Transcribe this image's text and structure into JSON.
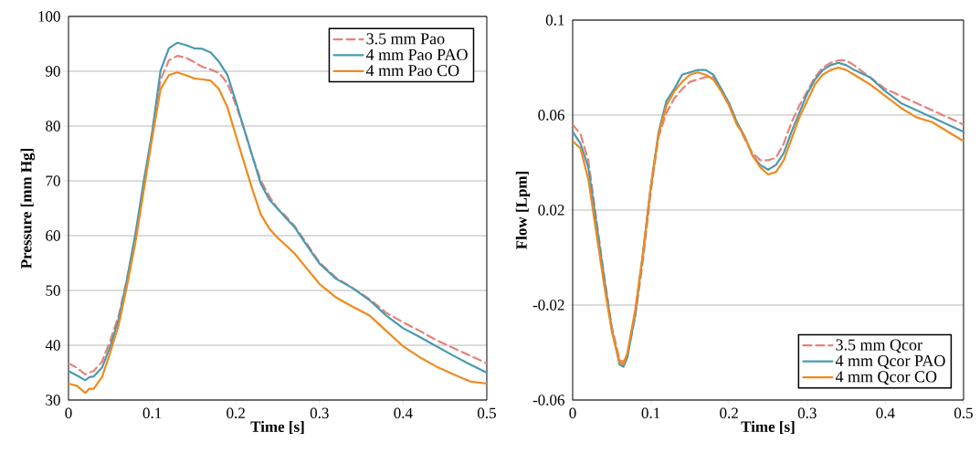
{
  "chart_data": [
    {
      "type": "line",
      "xlabel": "Time [s]",
      "ylabel": "Pressure [mm Hg]",
      "xlim": [
        0,
        0.5
      ],
      "ylim": [
        30,
        100
      ],
      "xticks": [
        0,
        0.1,
        0.2,
        0.3,
        0.4,
        0.5
      ],
      "yticks": [
        30,
        40,
        50,
        60,
        70,
        80,
        90,
        100
      ],
      "grid": "y",
      "legend": "top right",
      "marker": "none",
      "x": [
        0,
        0.01,
        0.02,
        0.025,
        0.03,
        0.04,
        0.05,
        0.06,
        0.07,
        0.08,
        0.09,
        0.1,
        0.11,
        0.12,
        0.13,
        0.14,
        0.15,
        0.16,
        0.17,
        0.18,
        0.19,
        0.2,
        0.21,
        0.22,
        0.23,
        0.24,
        0.25,
        0.26,
        0.27,
        0.28,
        0.3,
        0.32,
        0.34,
        0.36,
        0.38,
        0.4,
        0.42,
        0.44,
        0.46,
        0.48,
        0.5
      ],
      "series": [
        {
          "name": "3.5 mm Pao",
          "color": "#e8827a",
          "line_style": "dashed",
          "values": [
            36.7,
            35.9,
            34.7,
            35.0,
            35.3,
            37,
            40.9,
            45.4,
            52.1,
            59.9,
            68.8,
            78.9,
            88.4,
            92,
            92.8,
            92.5,
            91.7,
            90.8,
            90.3,
            89.7,
            87.8,
            83.9,
            79.4,
            74.4,
            70,
            67.2,
            64.9,
            63.5,
            61.8,
            59.6,
            55.1,
            52.3,
            50.4,
            48.4,
            45.9,
            44.2,
            42.6,
            40.9,
            39.5,
            38.1,
            36.7
          ]
        },
        {
          "name": "4 mm Pao PAO",
          "color": "#4a9ab0",
          "line_style": "solid",
          "values": [
            35.3,
            34.5,
            33.6,
            34.2,
            34.3,
            35.9,
            39.8,
            44.8,
            52.1,
            60.4,
            70,
            78.9,
            90.1,
            94.2,
            95.2,
            94.8,
            94.2,
            94.1,
            93.4,
            91.7,
            89.3,
            84.5,
            79.4,
            74.4,
            69.4,
            66.6,
            64.9,
            63.2,
            61.6,
            59.3,
            54.9,
            52.1,
            50.4,
            48.2,
            45.4,
            43.1,
            41.5,
            39.8,
            38.1,
            36.5,
            35
          ]
        },
        {
          "name": "4 mm Pao CO",
          "color": "#f08a1c",
          "line_style": "solid",
          "values": [
            33,
            32.6,
            31.3,
            32.1,
            32,
            34.2,
            38.7,
            43.7,
            50.9,
            58.8,
            68.3,
            77.8,
            86.7,
            89.3,
            89.8,
            89.3,
            88.7,
            88.5,
            88.3,
            86.7,
            83.4,
            78.3,
            73.3,
            68.3,
            63.8,
            61.3,
            59.6,
            58.2,
            56.8,
            54.9,
            51.2,
            48.7,
            47,
            45.4,
            42.6,
            39.8,
            37.8,
            36.1,
            34.7,
            33.4,
            33
          ]
        }
      ]
    },
    {
      "type": "line",
      "xlabel": "Time [s]",
      "ylabel": "Flow [Lpm]",
      "xlim": [
        0,
        0.5
      ],
      "ylim": [
        -0.06,
        0.1
      ],
      "xticks": [
        0,
        0.1,
        0.2,
        0.3,
        0.4,
        0.5
      ],
      "yticks": [
        -0.06,
        -0.02,
        0.02,
        0.06,
        0.1
      ],
      "grid": "y",
      "legend": "bottom right",
      "marker": "none",
      "x": [
        0,
        0.01,
        0.02,
        0.03,
        0.04,
        0.05,
        0.06,
        0.065,
        0.07,
        0.08,
        0.09,
        0.1,
        0.11,
        0.12,
        0.13,
        0.14,
        0.15,
        0.16,
        0.17,
        0.18,
        0.19,
        0.2,
        0.21,
        0.22,
        0.23,
        0.24,
        0.25,
        0.26,
        0.27,
        0.28,
        0.29,
        0.3,
        0.31,
        0.32,
        0.33,
        0.34,
        0.35,
        0.36,
        0.38,
        0.4,
        0.42,
        0.44,
        0.46,
        0.48,
        0.5
      ],
      "series": [
        {
          "name": "3.5 mm Qcor",
          "color": "#e8827a",
          "line_style": "dashed",
          "values": [
            0.056,
            0.052,
            0.041,
            0.017,
            -0.007,
            -0.029,
            -0.043,
            -0.044,
            -0.041,
            -0.025,
            -0.001,
            0.028,
            0.051,
            0.061,
            0.067,
            0.071,
            0.074,
            0.075,
            0.076,
            0.076,
            0.071,
            0.065,
            0.057,
            0.05,
            0.044,
            0.041,
            0.041,
            0.042,
            0.048,
            0.057,
            0.064,
            0.07,
            0.076,
            0.08,
            0.082,
            0.083,
            0.083,
            0.081,
            0.076,
            0.071,
            0.068,
            0.065,
            0.062,
            0.059,
            0.056
          ]
        },
        {
          "name": "4 mm Qcor PAO",
          "color": "#4a9ab0",
          "line_style": "solid",
          "values": [
            0.053,
            0.048,
            0.038,
            0.015,
            -0.008,
            -0.03,
            -0.045,
            -0.046,
            -0.042,
            -0.024,
            0.002,
            0.03,
            0.053,
            0.066,
            0.071,
            0.077,
            0.078,
            0.079,
            0.079,
            0.077,
            0.071,
            0.065,
            0.057,
            0.051,
            0.043,
            0.039,
            0.037,
            0.039,
            0.044,
            0.053,
            0.061,
            0.069,
            0.075,
            0.079,
            0.081,
            0.082,
            0.081,
            0.079,
            0.076,
            0.07,
            0.065,
            0.062,
            0.059,
            0.056,
            0.053
          ]
        },
        {
          "name": "4 mm Qcor CO",
          "color": "#f08a1c",
          "line_style": "solid",
          "values": [
            0.049,
            0.046,
            0.033,
            0.011,
            -0.011,
            -0.031,
            -0.044,
            -0.045,
            -0.04,
            -0.022,
            0.002,
            0.03,
            0.052,
            0.064,
            0.07,
            0.074,
            0.077,
            0.078,
            0.077,
            0.075,
            0.07,
            0.064,
            0.056,
            0.051,
            0.043,
            0.038,
            0.035,
            0.036,
            0.041,
            0.05,
            0.059,
            0.066,
            0.073,
            0.077,
            0.079,
            0.08,
            0.079,
            0.077,
            0.073,
            0.068,
            0.063,
            0.059,
            0.057,
            0.053,
            0.049
          ]
        }
      ]
    }
  ]
}
